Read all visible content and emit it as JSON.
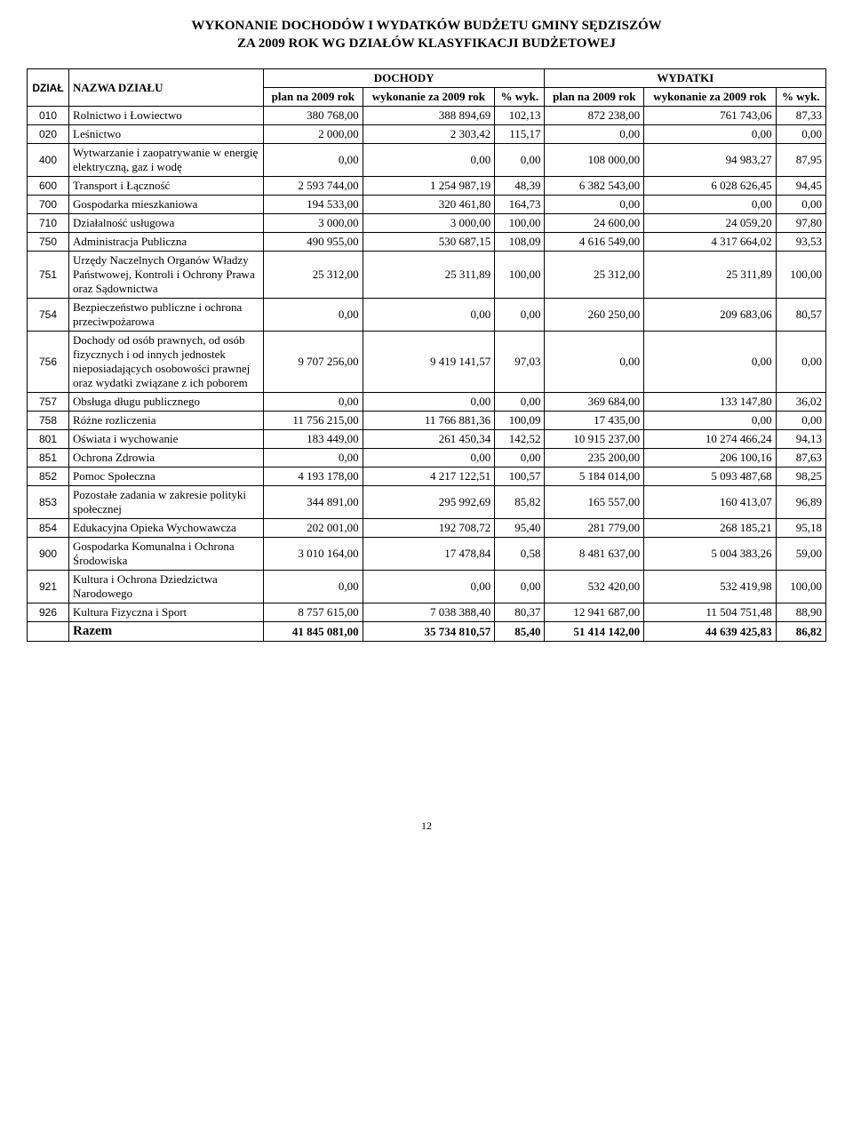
{
  "title_line1": "WYKONANIE DOCHODÓW I WYDATKÓW BUDŻETU GMINY SĘDZISZÓW",
  "title_line2": "ZA  2009 ROK WG DZIAŁÓW KLASYFIKACJI BUDŻETOWEJ",
  "page_number": "12",
  "header": {
    "dzial": "DZIAŁ",
    "nazwa": "NAZWA DZIAŁU",
    "dochody": "DOCHODY",
    "wydatki": "WYDATKI",
    "plan_2009": "plan na 2009 rok",
    "wyk_za_2009": "wykonanie za 2009 rok",
    "pct_wyk": "% wyk.",
    "wyk_2009": "wykonanie za 2009 rok"
  },
  "rows": [
    {
      "dzial": "010",
      "nazwa": "Rolnictwo i Łowiectwo",
      "d_plan": "380 768,00",
      "d_wyk": "388 894,69",
      "d_pct": "102,13",
      "w_plan": "872 238,00",
      "w_wyk": "761 743,06",
      "w_pct": "87,33"
    },
    {
      "dzial": "020",
      "nazwa": "Leśnictwo",
      "d_plan": "2 000,00",
      "d_wyk": "2 303,42",
      "d_pct": "115,17",
      "w_plan": "0,00",
      "w_wyk": "0,00",
      "w_pct": "0,00"
    },
    {
      "dzial": "400",
      "nazwa": "Wytwarzanie i zaopatrywanie w energię elektryczną, gaz i wodę",
      "d_plan": "0,00",
      "d_wyk": "0,00",
      "d_pct": "0,00",
      "w_plan": "108 000,00",
      "w_wyk": "94 983,27",
      "w_pct": "87,95"
    },
    {
      "dzial": "600",
      "nazwa": "Transport i Łączność",
      "d_plan": "2 593 744,00",
      "d_wyk": "1 254 987,19",
      "d_pct": "48,39",
      "w_plan": "6 382 543,00",
      "w_wyk": "6 028 626,45",
      "w_pct": "94,45"
    },
    {
      "dzial": "700",
      "nazwa": "Gospodarka mieszkaniowa",
      "d_plan": "194 533,00",
      "d_wyk": "320 461,80",
      "d_pct": "164,73",
      "w_plan": "0,00",
      "w_wyk": "0,00",
      "w_pct": "0,00"
    },
    {
      "dzial": "710",
      "nazwa": "Działalność usługowa",
      "d_plan": "3 000,00",
      "d_wyk": "3 000,00",
      "d_pct": "100,00",
      "w_plan": "24 600,00",
      "w_wyk": "24 059,20",
      "w_pct": "97,80"
    },
    {
      "dzial": "750",
      "nazwa": "Administracja Publiczna",
      "d_plan": "490 955,00",
      "d_wyk": "530 687,15",
      "d_pct": "108,09",
      "w_plan": "4 616 549,00",
      "w_wyk": "4 317 664,02",
      "w_pct": "93,53"
    },
    {
      "dzial": "751",
      "nazwa": "Urzędy Naczelnych Organów Władzy Państwowej, Kontroli i Ochrony Prawa oraz Sądownictwa",
      "d_plan": "25 312,00",
      "d_wyk": "25 311,89",
      "d_pct": "100,00",
      "w_plan": "25 312,00",
      "w_wyk": "25 311,89",
      "w_pct": "100,00"
    },
    {
      "dzial": "754",
      "nazwa": "Bezpieczeństwo publiczne i ochrona przeciwpożarowa",
      "d_plan": "0,00",
      "d_wyk": "0,00",
      "d_pct": "0,00",
      "w_plan": "260 250,00",
      "w_wyk": "209 683,06",
      "w_pct": "80,57"
    },
    {
      "dzial": "756",
      "nazwa": "Dochody od osób prawnych, od osób fizycznych i od innych jednostek nieposiadających osobowości prawnej oraz wydatki związane z ich poborem",
      "d_plan": "9 707 256,00",
      "d_wyk": "9 419 141,57",
      "d_pct": "97,03",
      "w_plan": "0,00",
      "w_wyk": "0,00",
      "w_pct": "0,00"
    },
    {
      "dzial": "757",
      "nazwa": "Obsługa długu publicznego",
      "d_plan": "0,00",
      "d_wyk": "0,00",
      "d_pct": "0,00",
      "w_plan": "369 684,00",
      "w_wyk": "133 147,80",
      "w_pct": "36,02"
    },
    {
      "dzial": "758",
      "nazwa": "Różne rozliczenia",
      "d_plan": "11 756 215,00",
      "d_wyk": "11 766 881,36",
      "d_pct": "100,09",
      "w_plan": "17 435,00",
      "w_wyk": "0,00",
      "w_pct": "0,00"
    },
    {
      "dzial": "801",
      "nazwa": "Oświata i wychowanie",
      "d_plan": "183 449,00",
      "d_wyk": "261 450,34",
      "d_pct": "142,52",
      "w_plan": "10 915 237,00",
      "w_wyk": "10 274 466,24",
      "w_pct": "94,13"
    },
    {
      "dzial": "851",
      "nazwa": "Ochrona Zdrowia",
      "d_plan": "0,00",
      "d_wyk": "0,00",
      "d_pct": "0,00",
      "w_plan": "235 200,00",
      "w_wyk": "206 100,16",
      "w_pct": "87,63"
    },
    {
      "dzial": "852",
      "nazwa": "Pomoc Społeczna",
      "d_plan": "4 193 178,00",
      "d_wyk": "4 217 122,51",
      "d_pct": "100,57",
      "w_plan": "5 184 014,00",
      "w_wyk": "5 093 487,68",
      "w_pct": "98,25"
    },
    {
      "dzial": "853",
      "nazwa": "Pozostałe zadania w zakresie polityki społecznej",
      "d_plan": "344 891,00",
      "d_wyk": "295 992,69",
      "d_pct": "85,82",
      "w_plan": "165 557,00",
      "w_wyk": "160 413,07",
      "w_pct": "96,89"
    },
    {
      "dzial": "854",
      "nazwa": "Edukacyjna Opieka Wychowawcza",
      "d_plan": "202 001,00",
      "d_wyk": "192 708,72",
      "d_pct": "95,40",
      "w_plan": "281 779,00",
      "w_wyk": "268 185,21",
      "w_pct": "95,18"
    },
    {
      "dzial": "900",
      "nazwa": "Gospodarka Komunalna i Ochrona Środowiska",
      "d_plan": "3 010 164,00",
      "d_wyk": "17 478,84",
      "d_pct": "0,58",
      "w_plan": "8 481 637,00",
      "w_wyk": "5 004 383,26",
      "w_pct": "59,00"
    },
    {
      "dzial": "921",
      "nazwa": "Kultura i Ochrona Dziedzictwa Narodowego",
      "d_plan": "0,00",
      "d_wyk": "0,00",
      "d_pct": "0,00",
      "w_plan": "532 420,00",
      "w_wyk": "532 419,98",
      "w_pct": "100,00"
    },
    {
      "dzial": "926",
      "nazwa": "Kultura Fizyczna i Sport",
      "d_plan": "8 757 615,00",
      "d_wyk": "7 038 388,40",
      "d_pct": "80,37",
      "w_plan": "12 941 687,00",
      "w_wyk": "11 504 751,48",
      "w_pct": "88,90"
    }
  ],
  "total": {
    "label": "Razem",
    "d_plan": "41 845 081,00",
    "d_wyk": "35 734 810,57",
    "d_pct": "85,40",
    "w_plan": "51 414 142,00",
    "w_wyk": "44 639 425,83",
    "w_pct": "86,82"
  },
  "table_style": {
    "font_family": "Times New Roman",
    "font_size_pt": 13,
    "border_color": "#000000",
    "background_color": "#ffffff",
    "num_align": "right",
    "columns": [
      "DZIAŁ",
      "NAZWA DZIAŁU",
      "plan na 2009 rok",
      "wykonanie za 2009 rok",
      "% wyk.",
      "plan na 2009 rok",
      "wykonanie za 2009 rok",
      "% wyk."
    ]
  }
}
